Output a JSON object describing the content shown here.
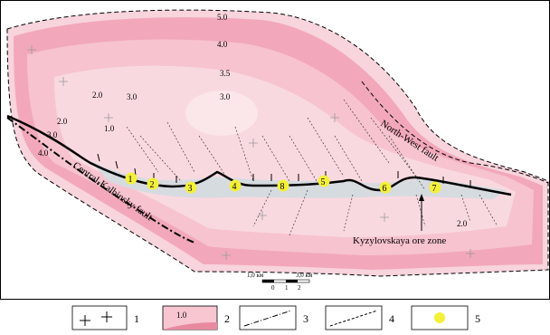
{
  "map": {
    "contour_labels": [
      "5.0",
      "4.0",
      "3.5",
      "3.0",
      "3.0",
      "2.0",
      "2.0",
      "1.0",
      "3.0",
      "4.0",
      "2.0"
    ],
    "faults": {
      "north_west": "North-West fault",
      "central_kalbinsky": "Central-Kalbinsky fault"
    },
    "ore_zone_label": "Kyzylovskaya ore zone",
    "deposits": [
      "1",
      "2",
      "3",
      "4",
      "8",
      "5",
      "6",
      "7"
    ],
    "scale_bar": {
      "left_label": "1,0 км",
      "ticks": [
        "0",
        "1",
        "2"
      ],
      "right_label": "3,0 км"
    }
  },
  "legend": [
    {
      "number": "1",
      "symbol": "cross-symbol"
    },
    {
      "number": "2",
      "symbol": "gradient-swatch",
      "sample_text": "1.0"
    },
    {
      "number": "3",
      "symbol": "dash-dot-line"
    },
    {
      "number": "4",
      "symbol": "dashed-line"
    },
    {
      "number": "5",
      "symbol": "yellow-circle"
    }
  ],
  "colors": {
    "pink_light": "#f9d9e0",
    "pink_mid": "#f3b3c2",
    "pink_dark": "#e8899f",
    "zone_fill": "#d6dbe0",
    "deposit_yellow": "#f4f03a"
  }
}
